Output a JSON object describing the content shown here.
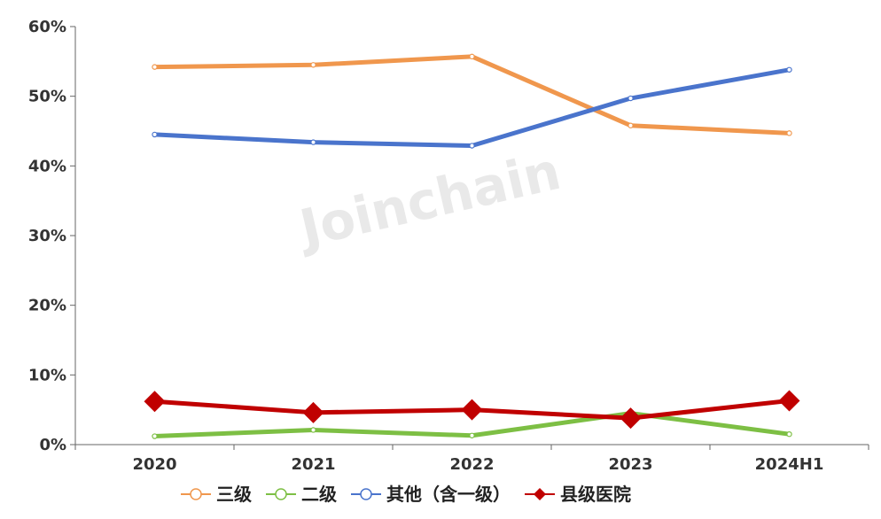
{
  "watermark": "Joinchain",
  "chart_data": {
    "type": "line",
    "categories": [
      "2020",
      "2021",
      "2022",
      "2023",
      "2024H1"
    ],
    "ylim": [
      0,
      60
    ],
    "yticks": [
      0,
      10,
      20,
      30,
      40,
      50,
      60
    ],
    "ytick_labels": [
      "0%",
      "10%",
      "20%",
      "30%",
      "40%",
      "50%",
      "60%"
    ],
    "grid": false,
    "legend_position": "bottom",
    "series": [
      {
        "name": "三级",
        "values": [
          54.2,
          54.5,
          55.7,
          45.8,
          44.7
        ],
        "color": "#f0974d",
        "marker": "circle"
      },
      {
        "name": "二级",
        "values": [
          1.2,
          2.1,
          1.3,
          4.5,
          1.5
        ],
        "color": "#7dbf44",
        "marker": "circle"
      },
      {
        "name": "其他（含一级）",
        "values": [
          44.5,
          43.4,
          42.9,
          49.7,
          53.8
        ],
        "color": "#4a74cc",
        "marker": "circle"
      },
      {
        "name": "县级医院",
        "values": [
          6.2,
          4.6,
          5.0,
          3.8,
          6.3
        ],
        "color": "#c00000",
        "marker": "diamond"
      }
    ]
  }
}
